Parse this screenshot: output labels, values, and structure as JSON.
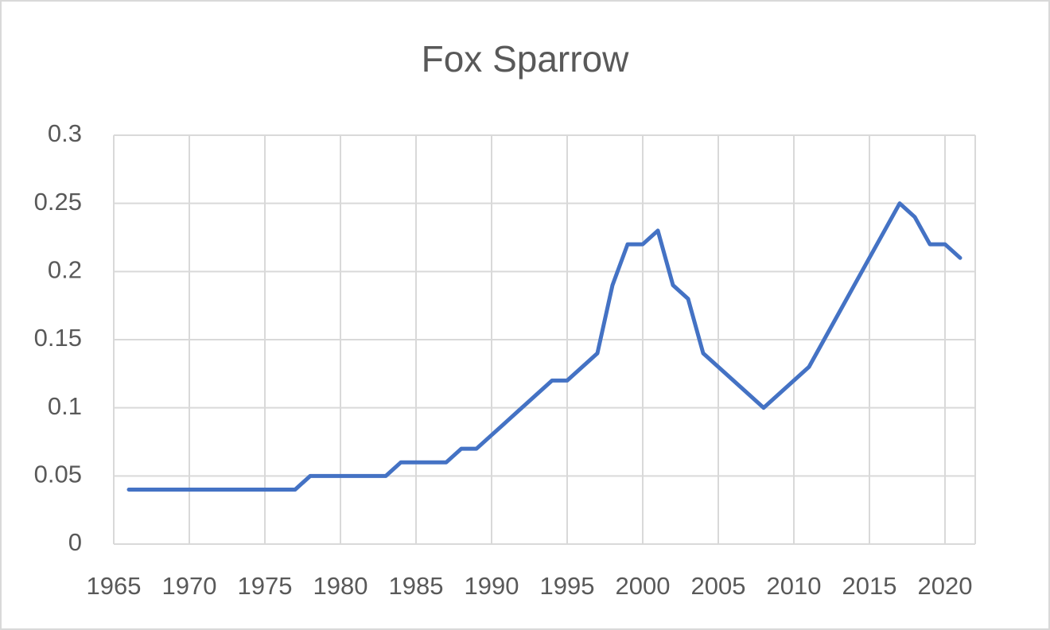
{
  "chart_data": {
    "type": "line",
    "title": "Fox Sparrow",
    "x": [
      1966,
      1967,
      1968,
      1969,
      1970,
      1971,
      1972,
      1973,
      1974,
      1975,
      1976,
      1977,
      1978,
      1979,
      1980,
      1981,
      1982,
      1983,
      1984,
      1985,
      1986,
      1987,
      1988,
      1989,
      1990,
      1991,
      1992,
      1993,
      1994,
      1995,
      1996,
      1997,
      1998,
      1999,
      2000,
      2001,
      2002,
      2003,
      2004,
      2005,
      2006,
      2007,
      2008,
      2009,
      2010,
      2011,
      2012,
      2013,
      2014,
      2015,
      2016,
      2017,
      2018,
      2019,
      2020,
      2021
    ],
    "series": [
      {
        "name": "Fox Sparrow",
        "color": "#4472c4",
        "values": [
          0.04,
          0.04,
          0.04,
          0.04,
          0.04,
          0.04,
          0.04,
          0.04,
          0.04,
          0.04,
          0.04,
          0.04,
          0.05,
          0.05,
          0.05,
          0.05,
          0.05,
          0.05,
          0.06,
          0.06,
          0.06,
          0.06,
          0.07,
          0.07,
          0.08,
          0.09,
          0.1,
          0.11,
          0.12,
          0.12,
          0.13,
          0.14,
          0.19,
          0.22,
          0.22,
          0.23,
          0.19,
          0.18,
          0.14,
          0.13,
          0.12,
          0.11,
          0.1,
          0.11,
          0.12,
          0.13,
          0.15,
          0.17,
          0.19,
          0.21,
          0.23,
          0.25,
          0.24,
          0.22,
          0.22,
          0.21
        ]
      }
    ],
    "xlim": [
      1965,
      2022
    ],
    "xticks": [
      1965,
      1970,
      1975,
      1980,
      1985,
      1990,
      1995,
      2000,
      2005,
      2010,
      2015,
      2020
    ],
    "ylim": [
      0,
      0.3
    ],
    "yticks": [
      0,
      0.05,
      0.1,
      0.15,
      0.2,
      0.25,
      0.3
    ],
    "grid": true
  }
}
